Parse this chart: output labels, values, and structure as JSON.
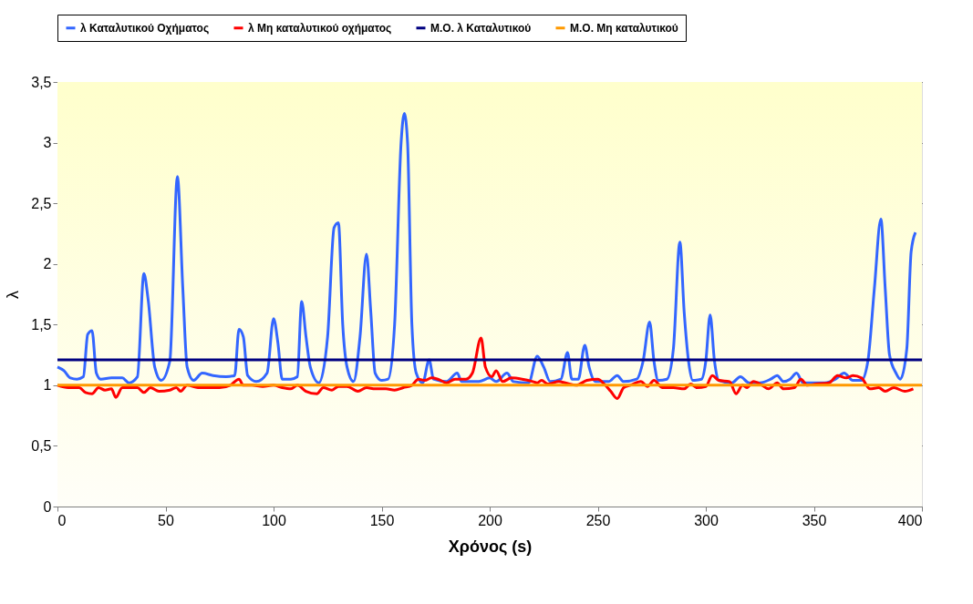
{
  "chart_data": {
    "type": "line",
    "xlabel": "Χρόνος (s)",
    "ylabel": "λ",
    "xlim": [
      0,
      400
    ],
    "xticks": [
      0,
      50,
      100,
      150,
      200,
      250,
      300,
      350,
      400
    ],
    "ylim": [
      0,
      3.5
    ],
    "yticks": [
      0,
      {
        "value": 0.5,
        "label": "0,5"
      },
      1,
      {
        "value": 1.5,
        "label": "1,5"
      },
      2,
      {
        "value": 2.5,
        "label": "2,5"
      },
      3,
      {
        "value": 3.5,
        "label": "3,5"
      }
    ],
    "grid": "y",
    "legend": "top",
    "line_style": "solid",
    "marker": "none",
    "series": [
      {
        "name": "λ Καταλυτικού Οχήματος",
        "color": "#3366ff",
        "x": [
          0,
          3,
          6,
          9,
          12,
          14,
          16,
          18,
          20,
          25,
          30,
          33,
          37,
          40,
          42,
          45,
          48,
          52,
          55.5,
          58,
          60,
          63,
          67,
          72,
          78,
          82,
          84,
          86,
          88,
          92,
          97,
          100,
          102,
          104,
          108,
          111,
          113,
          115,
          117,
          121,
          125,
          128,
          130,
          132,
          134,
          137,
          140,
          143,
          145,
          147,
          150,
          153,
          156,
          159,
          160.5,
          162,
          164,
          166,
          169,
          172,
          174,
          180,
          185,
          187,
          195,
          200,
          203,
          208,
          211,
          218,
          222,
          225,
          228,
          233,
          236,
          238,
          241,
          244,
          246,
          249,
          255,
          259,
          262,
          268,
          271,
          274,
          276,
          278,
          282,
          285,
          288,
          290,
          292,
          294,
          298,
          300,
          302,
          304,
          306,
          312,
          316,
          320,
          325,
          330,
          333,
          336,
          339,
          342,
          345,
          350,
          355,
          360,
          364,
          368,
          372,
          375,
          378,
          381,
          383,
          385,
          388,
          390,
          393,
          395,
          397
        ],
        "values": [
          1.15,
          1.12,
          1.06,
          1.05,
          1.07,
          1.42,
          1.45,
          1.1,
          1.05,
          1.06,
          1.06,
          1.02,
          1.07,
          1.92,
          1.7,
          1.15,
          1.04,
          1.2,
          2.72,
          1.8,
          1.15,
          1.04,
          1.1,
          1.08,
          1.07,
          1.08,
          1.46,
          1.4,
          1.08,
          1.03,
          1.1,
          1.55,
          1.35,
          1.05,
          1.05,
          1.07,
          1.69,
          1.4,
          1.15,
          1.02,
          1.4,
          2.3,
          2.34,
          1.5,
          1.15,
          1.03,
          1.4,
          2.08,
          1.6,
          1.1,
          1.04,
          1.05,
          1.5,
          3.0,
          3.24,
          3.0,
          1.5,
          1.1,
          1.02,
          1.21,
          1.05,
          1.03,
          1.1,
          1.03,
          1.03,
          1.06,
          1.03,
          1.1,
          1.03,
          1.02,
          1.24,
          1.15,
          1.03,
          1.05,
          1.27,
          1.05,
          1.05,
          1.33,
          1.15,
          1.03,
          1.03,
          1.08,
          1.03,
          1.05,
          1.2,
          1.52,
          1.2,
          1.04,
          1.05,
          1.3,
          2.18,
          1.6,
          1.2,
          1.04,
          1.05,
          1.2,
          1.58,
          1.2,
          1.04,
          1.02,
          1.07,
          1.02,
          1.02,
          1.05,
          1.08,
          1.03,
          1.05,
          1.1,
          1.02,
          1.02,
          1.02,
          1.05,
          1.1,
          1.04,
          1.04,
          1.2,
          1.8,
          2.37,
          1.8,
          1.25,
          1.1,
          1.05,
          1.3,
          2.1,
          2.26
        ]
      },
      {
        "name": "λ Μη καταλυτικού οχήματος",
        "color": "#ff0000",
        "x": [
          0,
          5,
          10,
          13,
          16,
          19,
          22,
          25,
          27,
          30,
          33,
          37,
          40,
          43,
          47,
          52,
          55,
          57,
          60,
          65,
          70,
          75,
          80,
          84,
          86,
          90,
          95,
          100,
          104,
          108,
          111,
          115,
          120,
          123,
          127,
          130,
          134,
          139,
          143,
          147,
          152,
          156,
          160,
          164,
          167,
          170,
          173,
          176,
          180,
          184,
          189,
          192,
          196,
          198,
          201,
          203,
          206,
          210,
          215,
          220,
          222,
          224,
          227,
          232,
          235,
          240,
          245,
          250,
          253,
          256,
          259,
          262,
          265,
          270,
          273,
          276,
          280,
          285,
          290,
          293,
          296,
          300,
          303,
          306,
          311,
          314,
          317,
          319,
          322,
          326,
          329,
          333,
          336,
          341,
          344,
          347,
          351,
          357,
          361,
          365,
          368,
          372,
          376,
          380,
          383,
          387,
          392,
          396
        ],
        "values": [
          1.0,
          0.98,
          0.98,
          0.94,
          0.93,
          0.98,
          0.96,
          0.97,
          0.9,
          0.98,
          0.98,
          0.98,
          0.94,
          0.98,
          0.95,
          0.96,
          0.98,
          0.95,
          1.0,
          0.98,
          0.98,
          0.98,
          1.0,
          1.05,
          1.0,
          1.0,
          0.99,
          1.0,
          0.98,
          0.97,
          1.0,
          0.95,
          0.93,
          0.98,
          0.96,
          0.99,
          0.99,
          0.95,
          0.98,
          0.97,
          0.97,
          0.96,
          0.98,
          1.0,
          1.05,
          1.04,
          1.06,
          1.05,
          1.02,
          1.05,
          1.05,
          1.1,
          1.39,
          1.15,
          1.07,
          1.12,
          1.03,
          1.06,
          1.05,
          1.03,
          1.02,
          1.04,
          1.01,
          1.03,
          1.02,
          1.0,
          1.04,
          1.05,
          1.01,
          0.95,
          0.89,
          0.98,
          1.0,
          1.03,
          0.99,
          1.04,
          0.98,
          0.98,
          0.97,
          1.01,
          0.98,
          0.99,
          1.08,
          1.04,
          1.03,
          0.93,
          1.0,
          0.98,
          1.03,
          1.0,
          0.97,
          1.02,
          0.97,
          0.98,
          1.05,
          1.0,
          1.01,
          1.02,
          1.08,
          1.06,
          1.08,
          1.06,
          0.97,
          0.98,
          0.95,
          0.98,
          0.95,
          0.97
        ]
      },
      {
        "name": "Μ.Ο. λ Καταλυτικού",
        "color": "#000080",
        "x": [
          0,
          400
        ],
        "values": [
          1.21,
          1.21
        ]
      },
      {
        "name": "Μ.Ο. Μη καταλυτικού",
        "color": "#ff9900",
        "x": [
          0,
          400
        ],
        "values": [
          1.0,
          1.0
        ]
      }
    ]
  }
}
